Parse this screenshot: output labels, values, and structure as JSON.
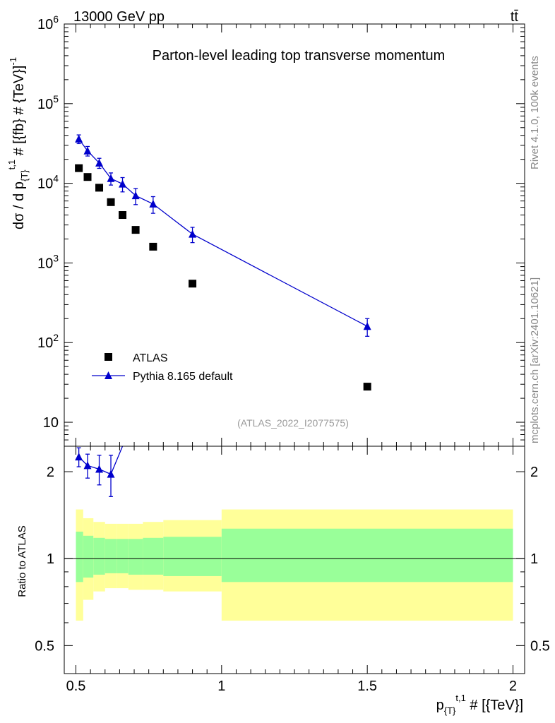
{
  "header": {
    "energy_label": "13000 GeV pp",
    "process_label": "tt̄",
    "rivet_label": "Rivet 4.1.0,  100k events",
    "site_label": "mcplots.cern.ch [arXiv:2401.10621]"
  },
  "colors": {
    "data": "#000000",
    "mc": "#0000cc",
    "band_inner": "#99ff99",
    "band_outer": "#ffff99"
  },
  "chart_data": [
    {
      "type": "scatter",
      "panel": "main",
      "title": "Parton-level leading top transverse momentum",
      "analysis_label": "(ATLAS_2022_I2077575)",
      "ylabel": "dσ / d p_{T}^{t,1} # [{fb} # {TeV}]^{-1}",
      "yscale": "log",
      "ylim": [
        5,
        1000000
      ],
      "xlim": [
        0.46,
        2.04
      ],
      "ytick_labels": [
        "10",
        "10^2",
        "10^3",
        "10^4",
        "10^5",
        "10^6"
      ],
      "legend_position": "lower-left",
      "series": [
        {
          "name": "ATLAS",
          "style": "markers",
          "marker": "square",
          "x": [
            0.51,
            0.54,
            0.58,
            0.62,
            0.66,
            0.705,
            0.765,
            0.9,
            1.5
          ],
          "y": [
            15500,
            12000,
            8800,
            5800,
            4000,
            2600,
            1600,
            550,
            28
          ]
        },
        {
          "name": "Pythia 8.165 default",
          "style": "line+markers",
          "marker": "triangle",
          "x": [
            0.51,
            0.54,
            0.58,
            0.62,
            0.66,
            0.705,
            0.765,
            0.9,
            1.5
          ],
          "y": [
            36000,
            25500,
            18000,
            11500,
            9800,
            7000,
            5500,
            2300,
            160
          ],
          "yerr_low": [
            4500,
            3500,
            2600,
            2000,
            2000,
            1600,
            1300,
            500,
            40
          ],
          "yerr_high": [
            4500,
            3500,
            2600,
            2000,
            2000,
            1600,
            1300,
            500,
            40
          ]
        }
      ]
    },
    {
      "type": "line",
      "panel": "ratio",
      "ylabel": "Ratio to ATLAS",
      "xlabel": "p_{T}^{t,1} # [{TeV}]",
      "yscale": "log",
      "ylim": [
        0.4,
        2.45
      ],
      "xlim": [
        0.46,
        2.04
      ],
      "ytick_labels": [
        "0.5",
        "1",
        "2"
      ],
      "xtick_labels": [
        "0.5",
        "1",
        "1.5",
        "2"
      ],
      "reference_line": 1,
      "band_edges": [
        0.5,
        0.525,
        0.56,
        0.6,
        0.64,
        0.68,
        0.73,
        0.8,
        1.0,
        2.0
      ],
      "band_inner_low": [
        0.83,
        0.86,
        0.88,
        0.89,
        0.89,
        0.88,
        0.88,
        0.87,
        0.83
      ],
      "band_inner_high": [
        1.24,
        1.2,
        1.18,
        1.17,
        1.17,
        1.17,
        1.18,
        1.19,
        1.27
      ],
      "band_outer_low": [
        0.61,
        0.72,
        0.77,
        0.79,
        0.79,
        0.78,
        0.78,
        0.77,
        0.61
      ],
      "band_outer_high": [
        1.48,
        1.38,
        1.34,
        1.32,
        1.32,
        1.32,
        1.34,
        1.36,
        1.48
      ],
      "series": [
        {
          "name": "Pythia 8.165 default / ATLAS",
          "x": [
            0.51,
            0.54,
            0.58,
            0.62,
            0.66
          ],
          "y": [
            2.25,
            2.1,
            2.04,
            1.96,
            2.45
          ],
          "yerr_low": [
            0.17,
            0.2,
            0.24,
            0.32,
            0
          ],
          "yerr_high": [
            0.17,
            0.2,
            0.24,
            0.32,
            0
          ]
        }
      ]
    }
  ]
}
